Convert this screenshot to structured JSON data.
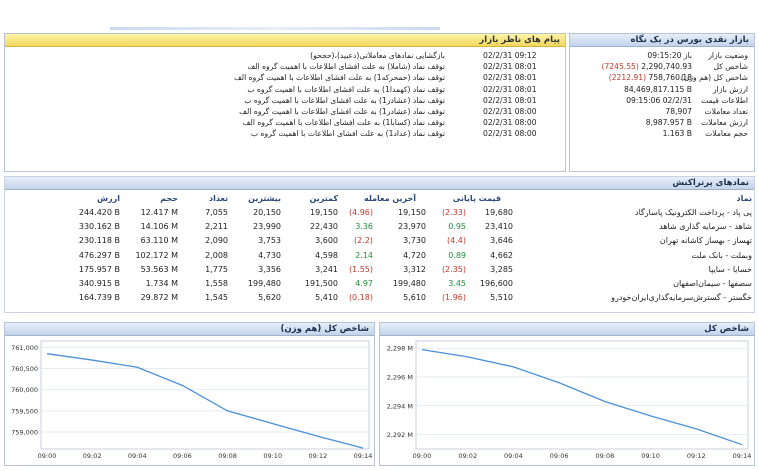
{
  "messages_panel": {
    "title": "پیام های ناظر بازار",
    "rows": [
      {
        "time": "02/2/31 09:12",
        "text": "بازگشایی نمادهای معاملاتی(دعبید)،(حجحو)"
      },
      {
        "time": "02/2/31 08:01",
        "text": "توقف نماد (شاملا) به علت افشای اطلاعات با اهمیت گروه الف"
      },
      {
        "time": "02/2/31 08:01",
        "text": "توقف نماد (حمحرکه1) به علت افشای اطلاعات با اهمیت گروه الف"
      },
      {
        "time": "02/2/31 08:01",
        "text": "توقف نماد (کهمدا1) به علت افشای اطلاعات با اهمیت گروه ب"
      },
      {
        "time": "02/2/31 08:01",
        "text": "توقف نماد (عشادر1) به علت افشای اطلاعات با اهمیت گروه ب"
      },
      {
        "time": "02/2/31 08:00",
        "text": "توقف نماد (عشادر1) به علت افشای اطلاعات با اهمیت گروه الف"
      },
      {
        "time": "02/2/31 08:00",
        "text": "توقف نماد (کسابا1) به علت افشای اطلاعات با اهمیت گروه الف"
      },
      {
        "time": "02/2/31 08:00",
        "text": "توقف نماد (عداد1) به علت افشای اطلاعات با اهمیت گروه ب"
      }
    ]
  },
  "market_panel": {
    "title": "بازار نقدی بورس در یک نگاه",
    "rows": [
      {
        "label": "وضعیت بازار",
        "value": "باز 09:15:20",
        "change": ""
      },
      {
        "label": "شاخص کل",
        "value": "2,290,740.93",
        "change": "(7245.55)"
      },
      {
        "label": "شاخص کل (هم وزن)",
        "value": "758,760.18",
        "change": "(2212.91)"
      },
      {
        "label": "ارزش بازار",
        "value": "84,469,817.115 B",
        "change": ""
      },
      {
        "label": "اطلاعات قیمت",
        "value": "09:15:06 02/2/31",
        "change": ""
      },
      {
        "label": "تعداد معاملات",
        "value": "78,907",
        "change": ""
      },
      {
        "label": "ارزش معاملات",
        "value": "8,987.957 B",
        "change": ""
      },
      {
        "label": "حجم معاملات",
        "value": "1.163 B",
        "change": ""
      }
    ]
  },
  "symbols_panel": {
    "title": "نمادهای پرتراکنش",
    "headers": {
      "symbol": "نماد",
      "close_price": "قیمت پایانی",
      "last_trade": "آخرین معامله",
      "min": "کمترین",
      "max": "بیشترین",
      "count": "تعداد",
      "volume": "حجم",
      "value": "ارزش"
    },
    "rows": [
      {
        "symbol": "پی پاد - پرداخت الکترونیک پاسارگاد",
        "close": "19,680",
        "close_chg": "(2.33)",
        "last": "19,150",
        "last_chg": "(4.96)",
        "min": "19,150",
        "max": "20,150",
        "count": "7,055",
        "volume": "12.417 M",
        "value": "244.420 B"
      },
      {
        "symbol": "شاهد - سرمایه گذاری شاهد",
        "close": "23,410",
        "close_chg": "0.95",
        "last": "23,970",
        "last_chg": "3.36",
        "min": "22,430",
        "max": "23,990",
        "count": "2,211",
        "volume": "14.106 M",
        "value": "330.162 B"
      },
      {
        "symbol": "تهساز - بهساز کاشانه تهران",
        "close": "3,646",
        "close_chg": "(4.4)",
        "last": "3,730",
        "last_chg": "(2.2)",
        "min": "3,600",
        "max": "3,753",
        "count": "2,090",
        "volume": "63.110 M",
        "value": "230.118 B"
      },
      {
        "symbol": "وبملت - بانک ملت",
        "close": "4,662",
        "close_chg": "0.89",
        "last": "4,720",
        "last_chg": "2.14",
        "min": "4,598",
        "max": "4,730",
        "count": "2,008",
        "volume": "102.172 M",
        "value": "476.297 B"
      },
      {
        "symbol": "خسایا - سایپا",
        "close": "3,285",
        "close_chg": "(2.35)",
        "last": "3,312",
        "last_chg": "(1.55)",
        "min": "3,241",
        "max": "3,356",
        "count": "1,775",
        "volume": "53.563 M",
        "value": "175.957 B"
      },
      {
        "symbol": "سصفها - سیمان‌اصفهان",
        "close": "196,600",
        "close_chg": "3.45",
        "last": "199,480",
        "last_chg": "4.97",
        "min": "191,500",
        "max": "199,480",
        "count": "1,558",
        "volume": "1.734 M",
        "value": "340.915 B"
      },
      {
        "symbol": "خگستر - گسترش‌سرمایه‌گذاری‌ایران‌خودرو",
        "close": "5,510",
        "close_chg": "(1.96)",
        "last": "5,610",
        "last_chg": "(0.18)",
        "min": "5,410",
        "max": "5,620",
        "count": "1,545",
        "volume": "29.872 M",
        "value": "164.739 B"
      }
    ]
  },
  "colors": {
    "negative": "#c0392b",
    "positive": "#1e8f3a",
    "line": "#4a90d9",
    "header_blue": "#2b4a7a"
  },
  "chart_data": [
    {
      "type": "line",
      "title": "شاخص کل (هم وزن)",
      "x": [
        "09:00",
        "09:02",
        "09:04",
        "09:06",
        "09:08",
        "09:10",
        "09:12",
        "09:14"
      ],
      "x_ticks": [
        "09:00",
        "09:02",
        "09:04",
        "09:06",
        "09:08",
        "09:10",
        "09:12",
        "09:14"
      ],
      "series": [
        {
          "values": [
            760.85,
            760.7,
            760.53,
            760.1,
            759.5,
            759.2,
            758.9,
            758.62
          ]
        }
      ],
      "y_ticks": [
        "761,000",
        "760,500",
        "760,000",
        "759,500",
        "759,000"
      ],
      "ylim": [
        758600,
        761150
      ],
      "xlabel": "",
      "ylabel": "",
      "grid": true
    },
    {
      "type": "line",
      "title": "شاخص کل",
      "x": [
        "09:00",
        "09:02",
        "09:04",
        "09:06",
        "09:08",
        "09:10",
        "09:12",
        "09:14"
      ],
      "x_ticks": [
        "09:00",
        "09:02",
        "09:04",
        "09:06",
        "09:08",
        "09:10",
        "09:12",
        "09:14"
      ],
      "series": [
        {
          "values": [
            2297.9,
            2297.4,
            2296.7,
            2295.6,
            2294.3,
            2293.3,
            2292.4,
            2291.3
          ]
        }
      ],
      "y_ticks": [
        "2,298 M",
        "2,296 M",
        "2,294 M",
        "2,292 M"
      ],
      "ylim": [
        2291000,
        2298500
      ],
      "xlabel": "",
      "ylabel": "",
      "grid": true
    }
  ]
}
